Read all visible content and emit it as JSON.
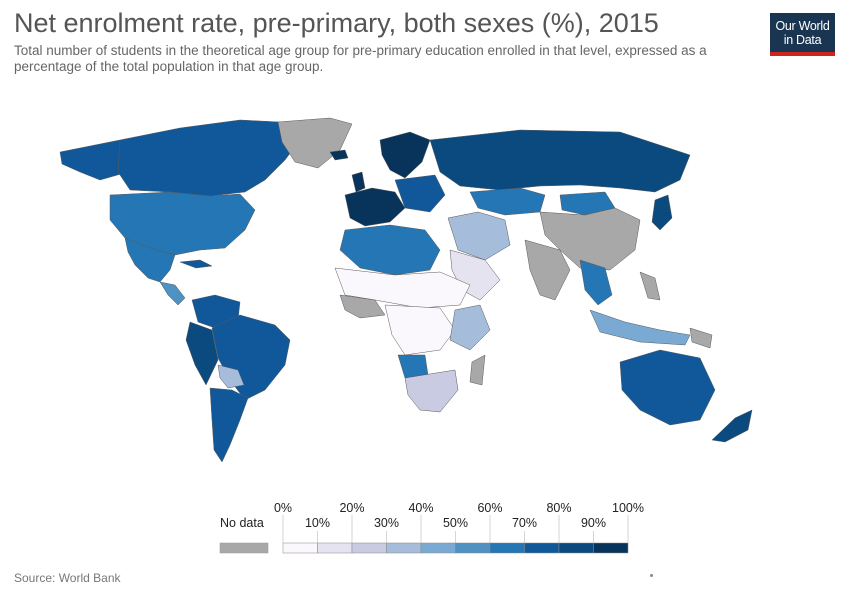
{
  "header": {
    "title": "Net enrolment rate, pre-primary, both sexes (%), 2015",
    "subtitle": "Total number of students in the theoretical age group for pre-primary education enrolled in that level, expressed as a percentage of the total population in that age group."
  },
  "logo": {
    "line1": "Our World",
    "line2": "in Data"
  },
  "legend": {
    "nodata_label": "No data",
    "nodata_color": "#a8a8a8",
    "upper_ticks": [
      "0%",
      "20%",
      "40%",
      "60%",
      "80%",
      "100%"
    ],
    "lower_ticks": [
      "10%",
      "30%",
      "50%",
      "70%",
      "90%"
    ],
    "bins": [
      {
        "range": "0-10",
        "color": "#fbf8fd"
      },
      {
        "range": "10-20",
        "color": "#e6e3f0"
      },
      {
        "range": "20-30",
        "color": "#c9cbe2"
      },
      {
        "range": "30-40",
        "color": "#a6bcdb"
      },
      {
        "range": "40-50",
        "color": "#7aaad3"
      },
      {
        "range": "50-60",
        "color": "#4f91c2"
      },
      {
        "range": "60-70",
        "color": "#2476b4"
      },
      {
        "range": "70-80",
        "color": "#10589a"
      },
      {
        "range": "80-90",
        "color": "#0a4a7e"
      },
      {
        "range": "90-100",
        "color": "#08345c"
      }
    ]
  },
  "map_colors": {
    "ocean": "#ffffff",
    "border": "#5a5a5a"
  },
  "footer": {
    "source": "Source: World Bank"
  }
}
